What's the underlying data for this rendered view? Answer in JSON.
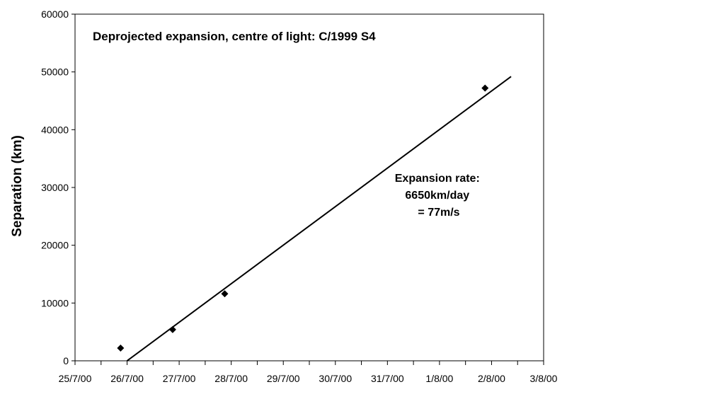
{
  "chart_data": {
    "type": "scatter",
    "title": "Deprojected expansion, centre of light: C/1999 S4",
    "xlabel": "",
    "ylabel": "Separation (km)",
    "x_tick_labels": [
      "25/7/00",
      "26/7/00",
      "27/7/00",
      "28/7/00",
      "29/7/00",
      "30/7/00",
      "31/7/00",
      "1/8/00",
      "2/8/00",
      "3/8/00"
    ],
    "xlim": [
      "2000-07-25",
      "2000-08-03"
    ],
    "ylim": [
      0,
      60000
    ],
    "y_ticks": [
      0,
      10000,
      20000,
      30000,
      40000,
      50000,
      60000
    ],
    "grid": false,
    "legend": "none",
    "series": [
      {
        "marker": "diamond",
        "color": "#000000",
        "points": [
          {
            "x": "2000-07-25 21:00",
            "y": 2200
          },
          {
            "x": "2000-07-26 21:00",
            "y": 5400
          },
          {
            "x": "2000-07-27 21:00",
            "y": 11600
          },
          {
            "x": "2000-08-01 21:00",
            "y": 47200
          }
        ]
      }
    ],
    "trendline": {
      "type": "linear",
      "color": "#000000",
      "from": {
        "x": "2000-07-26 00:00",
        "y": 0
      },
      "to": {
        "x": "2000-08-02 09:00",
        "y": 49200
      }
    },
    "annotation": [
      "Expansion rate:",
      "6650km/day",
      "= 77m/s"
    ]
  }
}
